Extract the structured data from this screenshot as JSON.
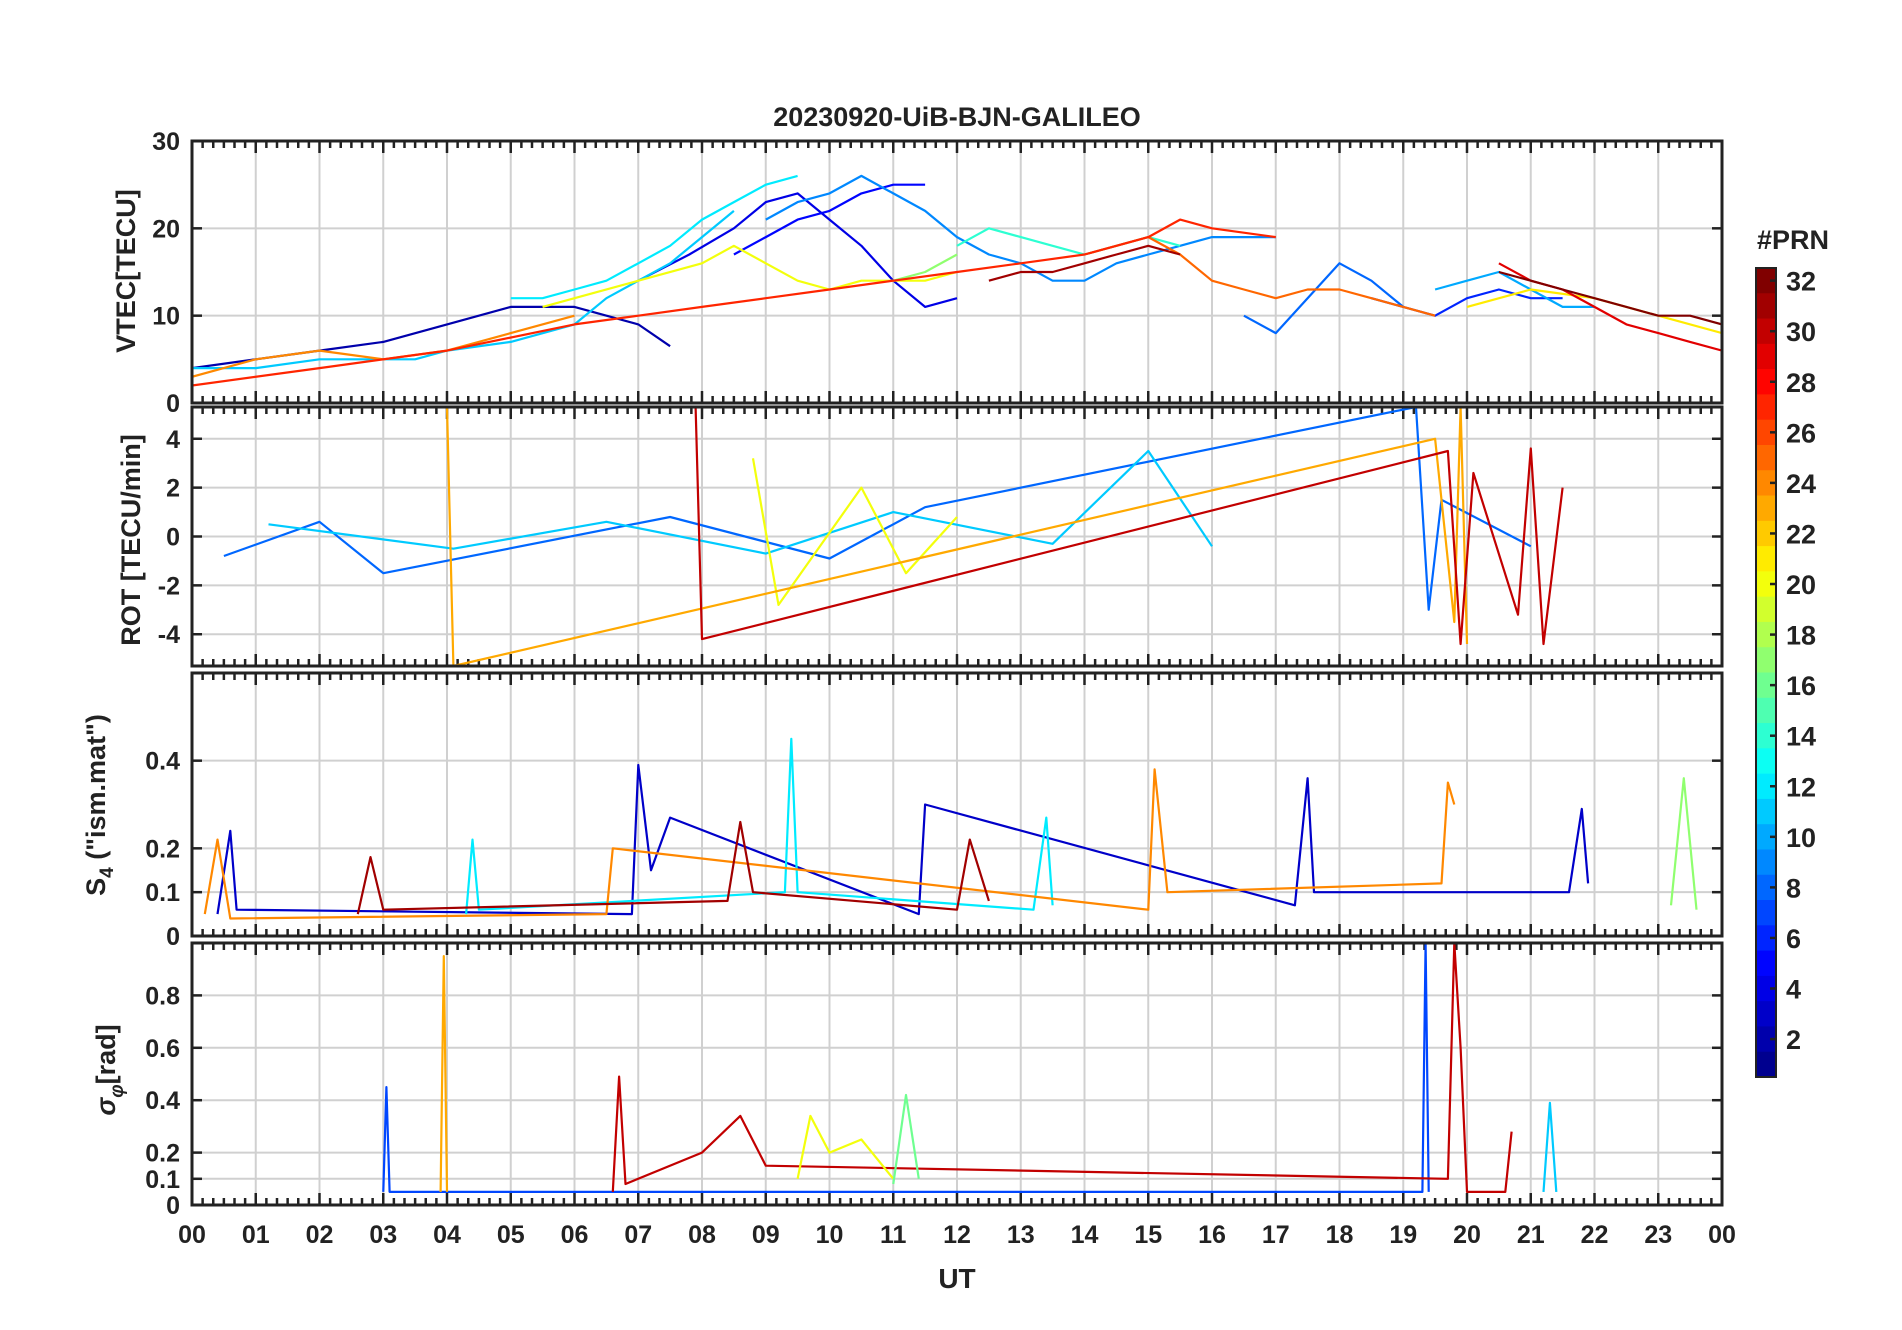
{
  "chart_data": [
    {
      "type": "line",
      "panel": "vtec",
      "title": "20230920-UiB-BJN-GALILEO",
      "ylabel": "VTEC[TECU]",
      "xlabel": "",
      "ylim": [
        0,
        30
      ],
      "yticks": [
        0,
        10,
        20,
        30
      ],
      "ytick_labels": [
        "0",
        "10",
        "20",
        "30"
      ],
      "xlim": [
        0,
        24
      ],
      "grid": true,
      "series": [
        {
          "name": "PRN 2",
          "prn": 2,
          "x": [
            0.0,
            1.0,
            2.0,
            3.0,
            4.0,
            5.0,
            6.0,
            7.0,
            7.5
          ],
          "values": [
            4,
            5,
            6,
            7,
            9,
            11,
            11,
            9,
            6.5
          ]
        },
        {
          "name": "PRN 4",
          "prn": 4,
          "x": [
            7.0,
            7.8,
            8.5,
            9.0,
            9.5,
            10.0,
            10.5,
            11.0,
            11.5,
            12.0
          ],
          "values": [
            14,
            17,
            20,
            23,
            24,
            21,
            18,
            14,
            11,
            12
          ]
        },
        {
          "name": "PRN 5",
          "prn": 5,
          "x": [
            8.5,
            9.0,
            9.5,
            10.0,
            10.5,
            11.0,
            11.5
          ],
          "values": [
            17,
            19,
            21,
            22,
            24,
            25,
            25
          ]
        },
        {
          "name": "PRN 6",
          "prn": 6,
          "x": [
            18.5,
            19.0,
            19.5,
            20.0,
            20.5,
            21.0,
            21.5
          ],
          "values": [
            12,
            11,
            10,
            12,
            13,
            12,
            12
          ]
        },
        {
          "name": "PRN 8",
          "prn": 8,
          "x": [
            16.5,
            17.0,
            17.5,
            18.0,
            18.5,
            19.0
          ],
          "values": [
            10,
            8,
            12,
            16,
            14,
            11
          ]
        },
        {
          "name": "PRN 9",
          "prn": 9,
          "x": [
            9.0,
            9.5,
            10.0,
            10.5,
            11.0,
            11.5,
            12.0,
            12.5,
            13.0,
            13.5,
            14.0,
            14.5,
            15.0,
            15.5,
            16.0,
            16.5,
            17.0
          ],
          "values": [
            21,
            23,
            24,
            26,
            24,
            22,
            19,
            17,
            16,
            14,
            14,
            16,
            17,
            18,
            19,
            19,
            19
          ]
        },
        {
          "name": "PRN 10",
          "prn": 10,
          "x": [
            19.5,
            20.0,
            20.5,
            21.0,
            21.5,
            22.0
          ],
          "values": [
            13,
            14,
            15,
            13,
            11,
            11
          ]
        },
        {
          "name": "PRN 11",
          "prn": 11,
          "x": [
            0.0,
            1.0,
            2.0,
            3.0,
            3.5,
            4.0,
            5.0,
            6.0,
            6.5,
            7.0,
            7.5,
            8.0,
            8.5
          ],
          "values": [
            4,
            4,
            5,
            5,
            5,
            6,
            7,
            9,
            12,
            14,
            16,
            19,
            22
          ]
        },
        {
          "name": "PRN 12",
          "prn": 12,
          "x": [
            5.0,
            5.5,
            6.0,
            6.5,
            7.0,
            7.5,
            8.0,
            8.5,
            9.0,
            9.5
          ],
          "values": [
            12,
            12,
            13,
            14,
            16,
            18,
            21,
            23,
            25,
            26
          ]
        },
        {
          "name": "PRN 14",
          "prn": 14,
          "x": [
            12.0,
            12.5,
            13.0,
            13.5,
            14.0,
            14.5,
            15.0,
            15.5
          ],
          "values": [
            18,
            20,
            19,
            18,
            17,
            18,
            19,
            18
          ]
        },
        {
          "name": "PRN 17",
          "prn": 17,
          "x": [
            11.0,
            11.5,
            12.0
          ],
          "values": [
            14,
            15,
            17
          ]
        },
        {
          "name": "PRN 20",
          "prn": 20,
          "x": [
            5.5,
            6.0,
            7.0,
            8.0,
            8.5,
            9.0,
            9.5,
            10.0,
            10.5,
            11.0,
            11.5,
            12.0
          ],
          "values": [
            11,
            12,
            14,
            16,
            18,
            16,
            14,
            13,
            14,
            14,
            14,
            15
          ]
        },
        {
          "name": "PRN 21",
          "prn": 21,
          "x": [
            20.0,
            21.0,
            22.0,
            23.0,
            24.0
          ],
          "values": [
            11,
            13,
            12,
            10,
            8
          ]
        },
        {
          "name": "PRN 24",
          "prn": 24,
          "x": [
            0.0,
            1.0,
            2.0,
            3.0,
            4.0,
            5.0,
            6.0
          ],
          "values": [
            3,
            5,
            6,
            5,
            6,
            8,
            10
          ]
        },
        {
          "name": "PRN 25",
          "prn": 25,
          "x": [
            14.0,
            14.5,
            15.0,
            15.5,
            16.0,
            16.5,
            17.0,
            17.5,
            18.0,
            18.5,
            19.0,
            19.5
          ],
          "values": [
            17,
            18,
            19,
            17,
            14,
            13,
            12,
            13,
            13,
            12,
            11,
            10
          ]
        },
        {
          "name": "PRN 27",
          "prn": 27,
          "x": [
            0.0,
            2.0,
            4.0,
            6.0,
            7.0,
            8.0,
            9.0,
            10.0,
            11.0,
            12.0,
            13.0,
            14.0,
            15.0,
            15.5,
            16.0,
            17.0
          ],
          "values": [
            2,
            4,
            6,
            9,
            10,
            11,
            12,
            13,
            14,
            15,
            16,
            17,
            19,
            21,
            20,
            19
          ]
        },
        {
          "name": "PRN 29",
          "prn": 29,
          "x": [
            20.5,
            21.0,
            21.5,
            22.0,
            22.5,
            23.0,
            23.5,
            24.0
          ],
          "values": [
            16,
            14,
            13,
            11,
            9,
            8,
            7,
            6
          ]
        },
        {
          "name": "PRN 31",
          "prn": 31,
          "x": [
            12.5,
            13.0,
            13.5,
            14.0,
            14.5,
            15.0,
            15.5
          ],
          "values": [
            14,
            15,
            15,
            16,
            17,
            18,
            17
          ]
        },
        {
          "name": "PRN 32",
          "prn": 32,
          "x": [
            20.5,
            21.0,
            21.5,
            22.0,
            22.5,
            23.0,
            23.5,
            24.0
          ],
          "values": [
            15,
            14,
            13,
            12,
            11,
            10,
            10,
            9
          ]
        }
      ]
    },
    {
      "type": "line",
      "panel": "rot",
      "ylabel": "ROT [TECU/min]",
      "ylim": [
        -5.3,
        5.3
      ],
      "yticks": [
        -4,
        -2,
        0,
        2,
        4
      ],
      "ytick_labels": [
        "-4",
        "-2",
        "0",
        "2",
        "4"
      ],
      "xlim": [
        0,
        24
      ],
      "grid": true,
      "series": [
        {
          "name": "PRN 8",
          "prn": 8,
          "x": [
            0.5,
            2.0,
            3.0,
            7.5,
            10.0,
            11.5,
            19.2,
            19.4,
            19.6,
            21.0
          ],
          "values": [
            -0.8,
            0.6,
            -1.5,
            0.8,
            -0.9,
            1.2,
            5.3,
            -3.0,
            1.5,
            -0.4
          ]
        },
        {
          "name": "PRN 11",
          "prn": 11,
          "x": [
            1.2,
            4.1,
            6.5,
            9.0,
            11.0,
            13.5,
            15.0,
            16.0
          ],
          "values": [
            0.5,
            -0.5,
            0.6,
            -0.7,
            1.0,
            -0.3,
            3.5,
            -0.4
          ]
        },
        {
          "name": "PRN 20",
          "prn": 20,
          "x": [
            8.8,
            9.2,
            10.5,
            11.2,
            12.0
          ],
          "values": [
            3.2,
            -2.8,
            2.0,
            -1.5,
            0.8
          ]
        },
        {
          "name": "PRN 23",
          "prn": 23,
          "x": [
            4.0,
            4.1,
            19.5,
            19.8,
            19.9,
            20.0
          ],
          "values": [
            5.3,
            -5.3,
            4.0,
            -3.5,
            5.3,
            -4.4
          ]
        },
        {
          "name": "PRN 30",
          "prn": 30,
          "x": [
            7.9,
            8.0,
            19.7,
            19.9,
            20.1,
            20.8,
            21.0,
            21.2,
            21.5
          ],
          "values": [
            5.3,
            -4.2,
            3.5,
            -4.4,
            2.6,
            -3.2,
            3.6,
            -4.4,
            2.0
          ]
        }
      ]
    },
    {
      "type": "line",
      "panel": "s4",
      "ylabel": "S4 (\"ism.mat\")",
      "ylabel_main": "S",
      "ylabel_sub": "4",
      "ylabel_rest": " (\"ism.mat\")",
      "ylim": [
        0,
        0.6
      ],
      "yticks": [
        0,
        0.1,
        0.2,
        0.4
      ],
      "ytick_labels": [
        "0",
        "0.1",
        "0.2",
        "0.4"
      ],
      "xlim": [
        0,
        24
      ],
      "grid": true,
      "series": [
        {
          "name": "PRN 3",
          "prn": 3,
          "x": [
            0.4,
            0.6,
            0.7,
            6.9,
            7.0,
            7.2,
            7.5,
            11.4,
            11.5,
            17.3,
            17.5,
            17.6,
            21.6,
            21.8,
            21.9
          ],
          "values": [
            0.05,
            0.24,
            0.06,
            0.05,
            0.39,
            0.15,
            0.27,
            0.05,
            0.3,
            0.07,
            0.36,
            0.1,
            0.1,
            0.29,
            0.12
          ]
        },
        {
          "name": "PRN 12",
          "prn": 12,
          "x": [
            4.3,
            4.4,
            4.5,
            9.3,
            9.4,
            9.5,
            13.2,
            13.4,
            13.5
          ],
          "values": [
            0.05,
            0.22,
            0.06,
            0.1,
            0.45,
            0.1,
            0.06,
            0.27,
            0.07
          ]
        },
        {
          "name": "PRN 17",
          "prn": 17,
          "x": [
            23.2,
            23.4,
            23.6
          ],
          "values": [
            0.07,
            0.36,
            0.06
          ]
        },
        {
          "name": "PRN 24",
          "prn": 24,
          "x": [
            0.2,
            0.4,
            0.6,
            6.5,
            6.6,
            15.0,
            15.1,
            15.3,
            19.6,
            19.7,
            19.8
          ],
          "values": [
            0.05,
            0.22,
            0.04,
            0.05,
            0.2,
            0.06,
            0.38,
            0.1,
            0.12,
            0.35,
            0.3
          ]
        },
        {
          "name": "PRN 31",
          "prn": 31,
          "x": [
            2.6,
            2.8,
            3.0,
            8.4,
            8.6,
            8.8,
            12.0,
            12.2,
            12.5
          ],
          "values": [
            0.05,
            0.18,
            0.06,
            0.08,
            0.26,
            0.1,
            0.06,
            0.22,
            0.08
          ]
        }
      ]
    },
    {
      "type": "line",
      "panel": "sigma_phi",
      "ylabel": "σφ[rad]",
      "ylabel_main": "σ",
      "ylabel_sub": "φ",
      "ylabel_rest": "[rad]",
      "xlabel": "UT",
      "ylim": [
        0,
        1
      ],
      "yticks": [
        0,
        0.1,
        0.2,
        0.4,
        0.6,
        0.8
      ],
      "ytick_labels": [
        "0",
        "0.1",
        "0.2",
        "0.4",
        "0.6",
        "0.8"
      ],
      "xlim": [
        0,
        24
      ],
      "xticks": [
        0,
        1,
        2,
        3,
        4,
        5,
        6,
        7,
        8,
        9,
        10,
        11,
        12,
        13,
        14,
        15,
        16,
        17,
        18,
        19,
        20,
        21,
        22,
        23,
        24
      ],
      "xtick_labels": [
        "00",
        "01",
        "02",
        "03",
        "04",
        "05",
        "06",
        "07",
        "08",
        "09",
        "10",
        "11",
        "12",
        "13",
        "14",
        "15",
        "16",
        "17",
        "18",
        "19",
        "20",
        "21",
        "22",
        "23",
        "00"
      ],
      "grid": true,
      "series": [
        {
          "name": "PRN 7",
          "prn": 7,
          "x": [
            3.0,
            3.05,
            3.1,
            19.3,
            19.35,
            19.4
          ],
          "values": [
            0.05,
            0.45,
            0.05,
            0.05,
            1.0,
            0.05
          ]
        },
        {
          "name": "PRN 23",
          "prn": 23,
          "x": [
            3.9,
            3.95,
            4.0
          ],
          "values": [
            0.05,
            0.95,
            0.05
          ]
        },
        {
          "name": "PRN 30",
          "prn": 30,
          "x": [
            6.6,
            6.7,
            6.8,
            8.0,
            8.6,
            9.0,
            19.7,
            19.8,
            19.9,
            20.0,
            20.6,
            20.7
          ],
          "values": [
            0.05,
            0.49,
            0.08,
            0.2,
            0.34,
            0.15,
            0.1,
            1.0,
            0.6,
            0.05,
            0.05,
            0.28
          ]
        },
        {
          "name": "PRN 20",
          "prn": 20,
          "x": [
            9.5,
            9.7,
            10.0,
            10.5,
            11.0
          ],
          "values": [
            0.1,
            0.34,
            0.2,
            0.25,
            0.1
          ]
        },
        {
          "name": "PRN 16",
          "prn": 16,
          "x": [
            11.0,
            11.2,
            11.4
          ],
          "values": [
            0.08,
            0.42,
            0.1
          ]
        },
        {
          "name": "PRN 11",
          "prn": 11,
          "x": [
            21.2,
            21.3,
            21.4
          ],
          "values": [
            0.05,
            0.39,
            0.05
          ]
        }
      ]
    }
  ],
  "colorbar": {
    "title": "#PRN",
    "range": [
      1,
      32
    ],
    "tick_labels": [
      "2",
      "4",
      "6",
      "8",
      "10",
      "12",
      "14",
      "16",
      "18",
      "20",
      "22",
      "24",
      "26",
      "28",
      "30",
      "32"
    ],
    "colormap": "jet",
    "colors": [
      "#00008f",
      "#0000ff",
      "#0080ff",
      "#00ffff",
      "#80ff80",
      "#ffff00",
      "#ff8000",
      "#ff0000",
      "#800000"
    ]
  }
}
